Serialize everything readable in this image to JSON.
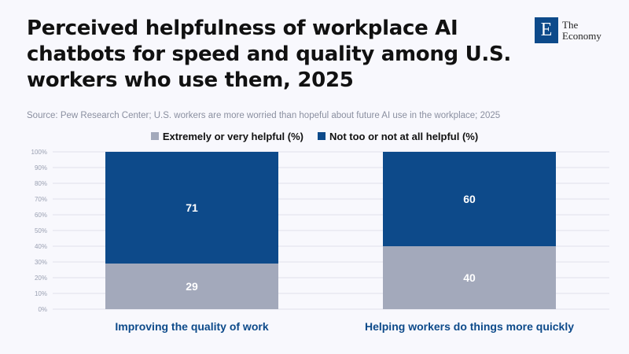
{
  "title": "Perceived helpfulness of workplace AI chatbots for speed and quality among U.S. workers who use them, 2025",
  "source": "Source: Pew Research Center; U.S. workers are more worried than hopeful about future AI use in the workplace; 2025",
  "logo": {
    "line1": "The",
    "line2": "Economy",
    "mark": "E"
  },
  "chart_data": {
    "type": "bar",
    "stacked": true,
    "categories": [
      "Improving the quality of work",
      "Helping workers do things more quickly"
    ],
    "series": [
      {
        "name": "Extremely or very helpful (%)",
        "values": [
          29,
          40
        ],
        "color": "#a3a9bb"
      },
      {
        "name": "Not too or not at all helpful (%)",
        "values": [
          71,
          60
        ],
        "color": "#0d4a8a"
      }
    ],
    "ylim": [
      0,
      100
    ],
    "yticks": [
      "0%",
      "10%",
      "20%",
      "30%",
      "40%",
      "50%",
      "60%",
      "70%",
      "80%",
      "90%",
      "100%"
    ],
    "legend": "top-center",
    "grid": true
  }
}
